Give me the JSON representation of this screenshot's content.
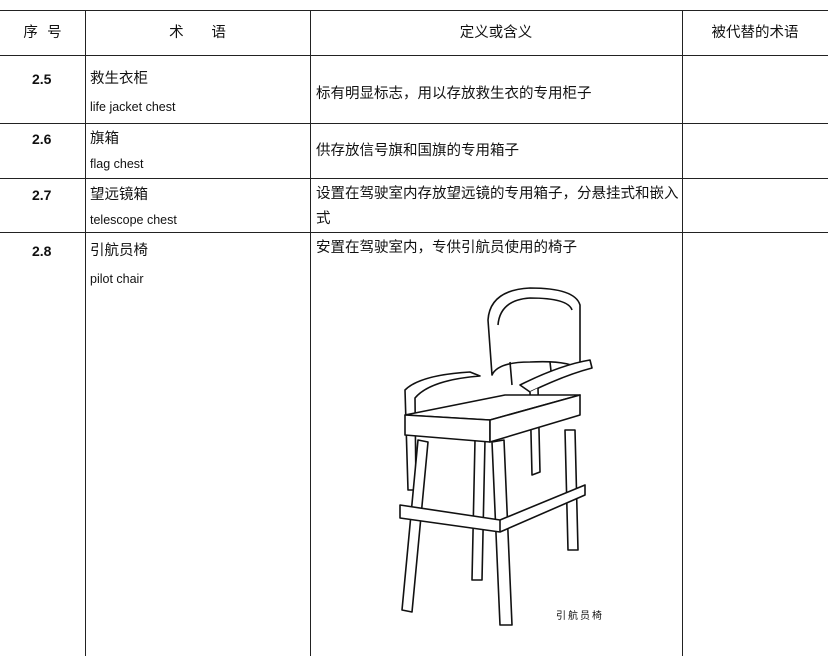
{
  "header": {
    "number": "序  号",
    "term": "术      语",
    "definition": "定义或含义",
    "replaced": "被代替的术语"
  },
  "rows": [
    {
      "number": "2.5",
      "term_zh": "救生衣柜",
      "term_en": "life jacket chest",
      "definition": "标有明显标志，用以存放救生衣的专用柜子"
    },
    {
      "number": "2.6",
      "term_zh": "旗箱",
      "term_en": "flag chest",
      "definition": "供存放信号旗和国旗的专用箱子"
    },
    {
      "number": "2.7",
      "term_zh": "望远镜箱",
      "term_en": "telescope chest",
      "definition": "设置在驾驶室内存放望远镜的专用箱子，分悬挂式和嵌入式"
    },
    {
      "number": "2.8",
      "term_zh": "引航员椅",
      "term_en": "pilot chair",
      "definition": "安置在驾驶室内，专供引航员使用的椅子"
    }
  ],
  "figure": {
    "caption": "引航员椅"
  }
}
